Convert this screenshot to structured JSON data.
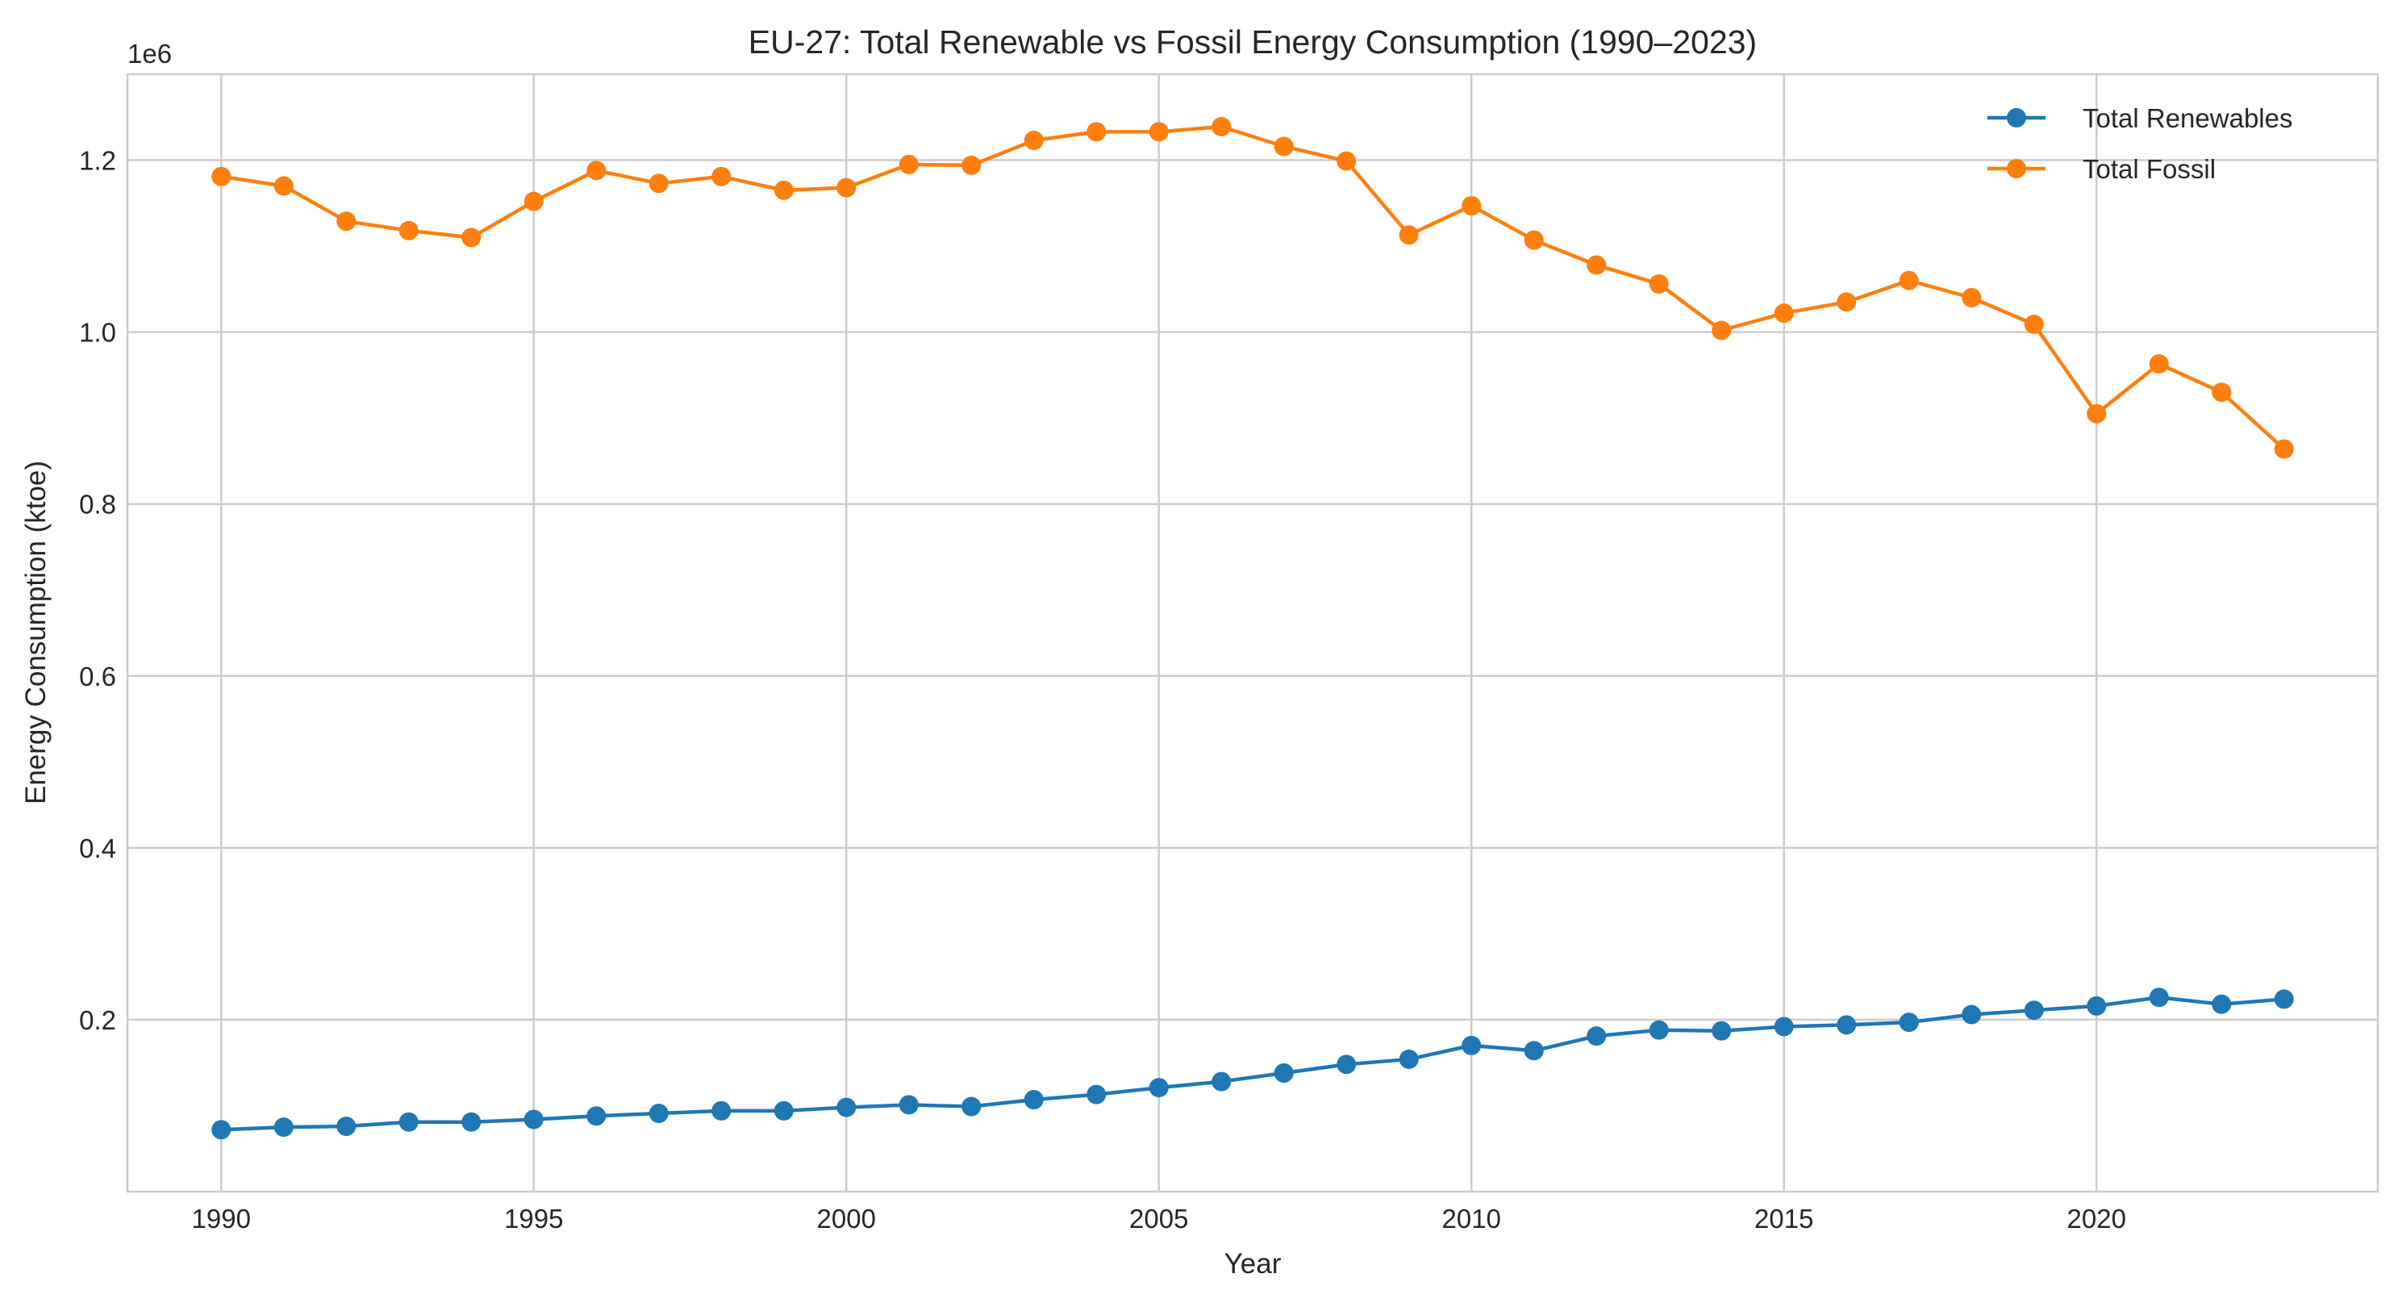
{
  "chart_data": {
    "type": "line",
    "title": "EU-27: Total Renewable vs Fossil Energy Consumption (1990–2023)",
    "xlabel": "Year",
    "ylabel": "Energy Consumption (ktoe)",
    "y_offset_label": "1e6",
    "xlim": [
      1988.5,
      2024.5
    ],
    "ylim": [
      0,
      1.3
    ],
    "x_ticks": [
      {
        "value": 1990,
        "label": "1990"
      },
      {
        "value": 1995,
        "label": "1995"
      },
      {
        "value": 2000,
        "label": "2000"
      },
      {
        "value": 2005,
        "label": "2005"
      },
      {
        "value": 2010,
        "label": "2010"
      },
      {
        "value": 2015,
        "label": "2015"
      },
      {
        "value": 2020,
        "label": "2020"
      }
    ],
    "y_ticks": [
      {
        "value": 0.2,
        "label": "0.2"
      },
      {
        "value": 0.4,
        "label": "0.4"
      },
      {
        "value": 0.6,
        "label": "0.6"
      },
      {
        "value": 0.8,
        "label": "0.8"
      },
      {
        "value": 1.0,
        "label": "1.0"
      },
      {
        "value": 1.2,
        "label": "1.2"
      }
    ],
    "grid": true,
    "legend_position": "top-right",
    "x": [
      1990,
      1991,
      1992,
      1993,
      1994,
      1995,
      1996,
      1997,
      1998,
      1999,
      2000,
      2001,
      2002,
      2003,
      2004,
      2005,
      2006,
      2007,
      2008,
      2009,
      2010,
      2011,
      2012,
      2013,
      2014,
      2015,
      2016,
      2017,
      2018,
      2019,
      2020,
      2021,
      2022,
      2023
    ],
    "series": [
      {
        "name": "Total Renewables",
        "color": "#1f77b4",
        "values": [
          0.072,
          0.075,
          0.076,
          0.081,
          0.081,
          0.084,
          0.088,
          0.091,
          0.094,
          0.094,
          0.098,
          0.101,
          0.099,
          0.107,
          0.113,
          0.121,
          0.128,
          0.138,
          0.148,
          0.154,
          0.17,
          0.164,
          0.181,
          0.188,
          0.187,
          0.192,
          0.194,
          0.197,
          0.206,
          0.211,
          0.216,
          0.226,
          0.218,
          0.224
        ]
      },
      {
        "name": "Total Fossil",
        "color": "#ff7f0e",
        "values": [
          1.181,
          1.17,
          1.129,
          1.118,
          1.11,
          1.152,
          1.188,
          1.173,
          1.181,
          1.165,
          1.168,
          1.195,
          1.194,
          1.223,
          1.233,
          1.233,
          1.239,
          1.216,
          1.199,
          1.113,
          1.147,
          1.107,
          1.078,
          1.056,
          1.002,
          1.022,
          1.035,
          1.06,
          1.04,
          1.009,
          0.905,
          0.963,
          0.93,
          0.864
        ]
      }
    ]
  },
  "colors": {
    "grid": "#cccccc",
    "axes": "#cccccc",
    "text": "#262626"
  }
}
